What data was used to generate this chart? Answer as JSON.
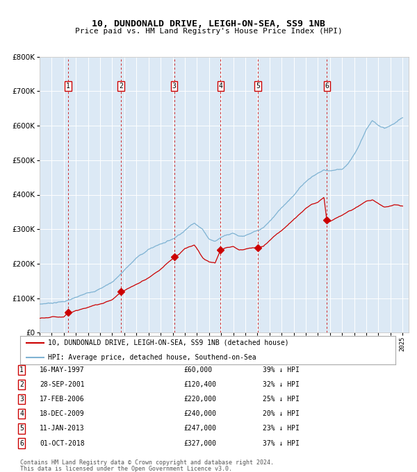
{
  "title": "10, DUNDONALD DRIVE, LEIGH-ON-SEA, SS9 1NB",
  "subtitle": "Price paid vs. HM Land Registry's House Price Index (HPI)",
  "title_fontsize": 9.5,
  "subtitle_fontsize": 8,
  "bg_color": "#dce9f5",
  "grid_color": "#ffffff",
  "transactions": [
    {
      "num": 1,
      "date_str": "16-MAY-1997",
      "date_x": 1997.37,
      "price": 60000,
      "pct": "39% ↓ HPI"
    },
    {
      "num": 2,
      "date_str": "28-SEP-2001",
      "date_x": 2001.74,
      "price": 120400,
      "pct": "32% ↓ HPI"
    },
    {
      "num": 3,
      "date_str": "17-FEB-2006",
      "date_x": 2006.12,
      "price": 220000,
      "pct": "25% ↓ HPI"
    },
    {
      "num": 4,
      "date_str": "18-DEC-2009",
      "date_x": 2009.96,
      "price": 240000,
      "pct": "20% ↓ HPI"
    },
    {
      "num": 5,
      "date_str": "11-JAN-2013",
      "date_x": 2013.03,
      "price": 247000,
      "pct": "23% ↓ HPI"
    },
    {
      "num": 6,
      "date_str": "01-OCT-2018",
      "date_x": 2018.75,
      "price": 327000,
      "pct": "37% ↓ HPI"
    }
  ],
  "legend_line1": "10, DUNDONALD DRIVE, LEIGH-ON-SEA, SS9 1NB (detached house)",
  "legend_line2": "HPI: Average price, detached house, Southend-on-Sea",
  "footer1": "Contains HM Land Registry data © Crown copyright and database right 2024.",
  "footer2": "This data is licensed under the Open Government Licence v3.0.",
  "ylim": [
    0,
    800000
  ],
  "xlim_start": 1995.0,
  "xlim_end": 2025.5,
  "red_color": "#cc0000",
  "blue_color": "#7fb3d3",
  "dashed_color": "#cc0000",
  "box_color": "#cc0000",
  "hpi_keypoints": [
    [
      1995.0,
      83000
    ],
    [
      1996.0,
      88000
    ],
    [
      1997.0,
      93000
    ],
    [
      1998.0,
      103000
    ],
    [
      1999.0,
      115000
    ],
    [
      2000.0,
      130000
    ],
    [
      2001.0,
      150000
    ],
    [
      2002.0,
      185000
    ],
    [
      2003.0,
      220000
    ],
    [
      2004.0,
      245000
    ],
    [
      2005.0,
      262000
    ],
    [
      2006.0,
      278000
    ],
    [
      2007.0,
      305000
    ],
    [
      2007.8,
      330000
    ],
    [
      2008.5,
      310000
    ],
    [
      2009.0,
      285000
    ],
    [
      2009.5,
      278000
    ],
    [
      2010.0,
      290000
    ],
    [
      2010.5,
      300000
    ],
    [
      2011.0,
      305000
    ],
    [
      2011.5,
      298000
    ],
    [
      2012.0,
      300000
    ],
    [
      2012.5,
      305000
    ],
    [
      2013.0,
      310000
    ],
    [
      2013.5,
      318000
    ],
    [
      2014.0,
      335000
    ],
    [
      2014.5,
      355000
    ],
    [
      2015.0,
      375000
    ],
    [
      2015.5,
      395000
    ],
    [
      2016.0,
      415000
    ],
    [
      2016.5,
      435000
    ],
    [
      2017.0,
      455000
    ],
    [
      2017.5,
      470000
    ],
    [
      2018.0,
      480000
    ],
    [
      2018.5,
      490000
    ],
    [
      2019.0,
      488000
    ],
    [
      2019.5,
      492000
    ],
    [
      2020.0,
      495000
    ],
    [
      2020.5,
      510000
    ],
    [
      2021.0,
      535000
    ],
    [
      2021.5,
      570000
    ],
    [
      2022.0,
      610000
    ],
    [
      2022.5,
      635000
    ],
    [
      2023.0,
      620000
    ],
    [
      2023.5,
      610000
    ],
    [
      2024.0,
      615000
    ],
    [
      2024.5,
      625000
    ],
    [
      2025.0,
      635000
    ]
  ],
  "red_keypoints": [
    [
      1995.0,
      42000
    ],
    [
      1996.0,
      45000
    ],
    [
      1997.0,
      47000
    ],
    [
      1997.37,
      60000
    ],
    [
      1998.0,
      66000
    ],
    [
      1999.0,
      75000
    ],
    [
      2000.0,
      85000
    ],
    [
      2001.0,
      98000
    ],
    [
      2001.74,
      120400
    ],
    [
      2002.0,
      124000
    ],
    [
      2003.0,
      140000
    ],
    [
      2004.0,
      160000
    ],
    [
      2005.0,
      185000
    ],
    [
      2006.12,
      220000
    ],
    [
      2006.5,
      230000
    ],
    [
      2007.0,
      248000
    ],
    [
      2007.8,
      256000
    ],
    [
      2008.5,
      218000
    ],
    [
      2009.0,
      205000
    ],
    [
      2009.5,
      202000
    ],
    [
      2009.96,
      240000
    ],
    [
      2010.0,
      240000
    ],
    [
      2010.5,
      248000
    ],
    [
      2011.0,
      252000
    ],
    [
      2011.5,
      242000
    ],
    [
      2012.0,
      245000
    ],
    [
      2012.5,
      248000
    ],
    [
      2013.03,
      247000
    ],
    [
      2013.5,
      252000
    ],
    [
      2014.0,
      268000
    ],
    [
      2014.5,
      285000
    ],
    [
      2015.0,
      300000
    ],
    [
      2015.5,
      315000
    ],
    [
      2016.0,
      330000
    ],
    [
      2016.5,
      348000
    ],
    [
      2017.0,
      365000
    ],
    [
      2017.5,
      378000
    ],
    [
      2018.0,
      385000
    ],
    [
      2018.5,
      400000
    ],
    [
      2018.75,
      327000
    ],
    [
      2019.0,
      330000
    ],
    [
      2019.5,
      340000
    ],
    [
      2020.0,
      350000
    ],
    [
      2020.5,
      360000
    ],
    [
      2021.0,
      368000
    ],
    [
      2021.5,
      378000
    ],
    [
      2022.0,
      390000
    ],
    [
      2022.5,
      395000
    ],
    [
      2023.0,
      385000
    ],
    [
      2023.5,
      375000
    ],
    [
      2024.0,
      378000
    ],
    [
      2024.5,
      382000
    ],
    [
      2025.0,
      378000
    ]
  ]
}
